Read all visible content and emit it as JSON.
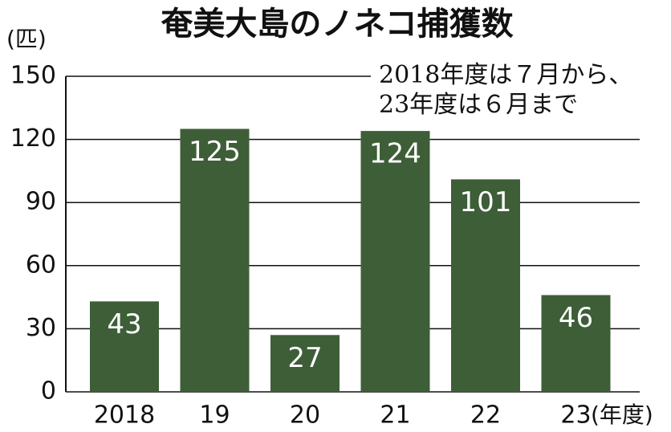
{
  "chart_data": {
    "type": "bar",
    "title": "奄美大島のノネコ捕獲数",
    "y_unit": "(匹)",
    "x_unit": "(年度)",
    "annotation": [
      "2018年度は７月から、",
      "23年度は６月まで"
    ],
    "categories": [
      "2018",
      "19",
      "20",
      "21",
      "22",
      "23"
    ],
    "values": [
      43,
      125,
      27,
      124,
      101,
      46
    ],
    "color": "#3d5e37",
    "ylim": [
      0,
      150
    ],
    "yticks": [
      0,
      30,
      60,
      90,
      120,
      150
    ],
    "grid": true
  }
}
